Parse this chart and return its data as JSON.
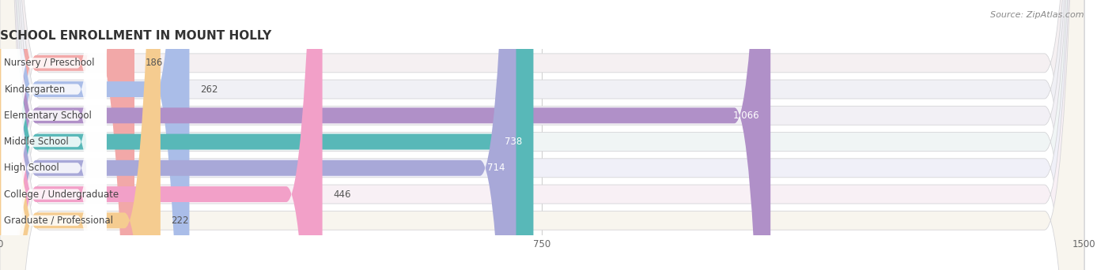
{
  "title": "SCHOOL ENROLLMENT IN MOUNT HOLLY",
  "source": "Source: ZipAtlas.com",
  "categories": [
    "Nursery / Preschool",
    "Kindergarten",
    "Elementary School",
    "Middle School",
    "High School",
    "College / Undergraduate",
    "Graduate / Professional"
  ],
  "values": [
    186,
    262,
    1066,
    738,
    714,
    446,
    222
  ],
  "bar_colors": [
    "#f2a8a8",
    "#aabde8",
    "#b090c8",
    "#58b8b8",
    "#a8a8d8",
    "#f2a0c8",
    "#f5cc90"
  ],
  "row_bgs": [
    "#f5f0f2",
    "#f0f0f5",
    "#f2f0f5",
    "#f0f5f5",
    "#f0f0f8",
    "#f8f0f5",
    "#f8f5ee"
  ],
  "xlim": [
    0,
    1500
  ],
  "xticks": [
    0,
    750,
    1500
  ],
  "background_color": "#ffffff",
  "title_fontsize": 11,
  "label_fontsize": 8.5,
  "value_fontsize": 8.5
}
